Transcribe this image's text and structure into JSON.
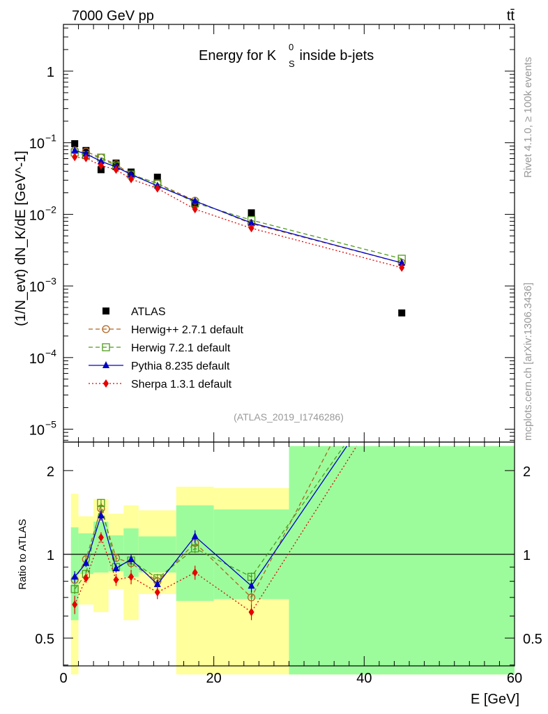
{
  "header": {
    "energy_label": "7000 GeV pp",
    "process_label": "tt̄"
  },
  "side_labels": {
    "rivet": "Rivet 4.1.0, ≥ 100k events",
    "mcplots": "mcplots.cern.ch [arXiv:1306.3436]"
  },
  "chart_data": [
    {
      "type": "scatter",
      "panel": "main",
      "title": "Energy for K",
      "title_super": "0",
      "title_sub": "S",
      "title_tail": " inside b-jets",
      "analysis_id": "(ATLAS_2019_I1746286)",
      "ylabel": "(1/N_evt) dN_K/dE [GeV^-1]",
      "yscale": "log",
      "ylim": [
        6e-06,
        4
      ],
      "xlim": [
        0,
        60
      ],
      "ytick_labels": [
        {
          "base": "1",
          "exp": ""
        },
        {
          "base": "10",
          "exp": "−1"
        },
        {
          "base": "10",
          "exp": "−2"
        },
        {
          "base": "10",
          "exp": "−3"
        },
        {
          "base": "10",
          "exp": "−4"
        },
        {
          "base": "10",
          "exp": "−5"
        }
      ],
      "ytick_values": [
        1,
        0.1,
        0.01,
        0.001,
        0.0001,
        1e-05
      ],
      "legend_position": "lower-left",
      "series": [
        {
          "name": "ATLAS",
          "color": "#000000",
          "marker": "square-filled",
          "x": [
            1.5,
            3,
            5,
            7,
            9,
            12.5,
            17.5,
            25,
            45
          ],
          "y": [
            0.097,
            0.078,
            0.042,
            0.052,
            0.039,
            0.033,
            0.014,
            0.0105,
            0.00042
          ]
        },
        {
          "name": "Herwig++ 2.7.1 default",
          "color": "#b0641e",
          "marker": "circle-open",
          "dash": "6,4",
          "x": [
            1.5,
            3,
            5,
            7,
            9,
            12.5,
            17.5,
            25,
            45
          ],
          "y": [
            0.078,
            0.075,
            0.062,
            0.05,
            0.036,
            0.027,
            0.0155,
            0.0074,
            0.0021
          ]
        },
        {
          "name": "Herwig 7.2.1 default",
          "color": "#4e9a1c",
          "marker": "square-open",
          "dash": "6,4",
          "x": [
            1.5,
            3,
            5,
            7,
            9,
            12.5,
            17.5,
            25,
            45
          ],
          "y": [
            0.073,
            0.067,
            0.062,
            0.047,
            0.036,
            0.027,
            0.0145,
            0.0083,
            0.0024
          ]
        },
        {
          "name": "Pythia 8.235 default",
          "color": "#0000c8",
          "marker": "triangle-filled",
          "x": [
            1.5,
            3,
            5,
            7,
            9,
            12.5,
            17.5,
            25,
            45
          ],
          "y": [
            0.078,
            0.07,
            0.055,
            0.046,
            0.036,
            0.025,
            0.0153,
            0.0076,
            0.0021
          ]
        },
        {
          "name": "Sherpa 1.3.1 default",
          "color": "#e60000",
          "marker": "diamond-filled",
          "dash": "2,3",
          "x": [
            1.5,
            3,
            5,
            7,
            9,
            12.5,
            17.5,
            25,
            45
          ],
          "y": [
            0.063,
            0.061,
            0.048,
            0.042,
            0.031,
            0.023,
            0.0118,
            0.0064,
            0.0018
          ]
        }
      ]
    },
    {
      "type": "line",
      "panel": "ratio",
      "ylabel": "Ratio to ATLAS",
      "xlabel": "E [GeV]",
      "ylim": [
        0.37,
        2.45
      ],
      "xlim": [
        0,
        60
      ],
      "xtick_labels": [
        "0",
        "20",
        "40",
        "60"
      ],
      "xtick_values": [
        0,
        20,
        40,
        60
      ],
      "ytick_labels": [
        "0.5",
        "1",
        "2"
      ],
      "ytick_values": [
        0.5,
        1,
        2
      ],
      "reference_line": 1,
      "uncertainty_bands": [
        {
          "x_range": [
            1,
            2
          ],
          "inner": [
            0.58,
            1.25
          ],
          "outer": [
            0.37,
            1.65
          ]
        },
        {
          "x_range": [
            2,
            4
          ],
          "inner": [
            0.85,
            1.19
          ],
          "outer": [
            0.66,
            1.37
          ]
        },
        {
          "x_range": [
            4,
            6
          ],
          "inner": [
            0.86,
            1.31
          ],
          "outer": [
            0.62,
            1.58
          ]
        },
        {
          "x_range": [
            6,
            8
          ],
          "inner": [
            0.87,
            1.17
          ],
          "outer": [
            0.75,
            1.4
          ]
        },
        {
          "x_range": [
            8,
            10
          ],
          "inner": [
            0.83,
            1.24
          ],
          "outer": [
            0.58,
            1.5
          ]
        },
        {
          "x_range": [
            10,
            15
          ],
          "inner": [
            0.86,
            1.16
          ],
          "outer": [
            0.72,
            1.44
          ]
        },
        {
          "x_range": [
            15,
            20
          ],
          "inner": [
            0.68,
            1.5
          ],
          "outer": [
            0.37,
            1.75
          ]
        },
        {
          "x_range": [
            20,
            30
          ],
          "inner": [
            0.69,
            1.45
          ],
          "outer": [
            0.37,
            1.73
          ]
        },
        {
          "x_range": [
            30,
            60
          ],
          "inner": [
            0.37,
            2.45
          ],
          "outer": [
            0.37,
            2.45
          ]
        }
      ],
      "series": [
        {
          "name": "Herwig++ 2.7.1 default",
          "x": [
            1.5,
            3,
            5,
            7,
            9,
            12.5,
            17.5,
            25,
            35.5
          ],
          "y": [
            0.81,
            0.96,
            1.46,
            0.97,
            0.93,
            0.8,
            1.1,
            0.7,
            2.45
          ],
          "err": [
            0.04,
            0.03,
            0.05,
            0.03,
            0.04,
            0.03,
            0.05,
            0.04,
            0
          ]
        },
        {
          "name": "Herwig 7.2.1 default",
          "x": [
            1.5,
            3,
            5,
            7,
            9,
            12.5,
            17.5,
            25,
            37.3
          ],
          "y": [
            0.75,
            0.85,
            1.53,
            0.9,
            0.95,
            0.82,
            1.05,
            0.83,
            2.45
          ],
          "err": [
            0.03,
            0.03,
            0.05,
            0.03,
            0.04,
            0.03,
            0.04,
            0.03,
            0
          ]
        },
        {
          "name": "Pythia 8.235 default",
          "x": [
            1.5,
            3,
            5,
            7,
            9,
            12.5,
            17.5,
            25,
            37.7
          ],
          "y": [
            0.83,
            0.93,
            1.38,
            0.89,
            0.96,
            0.78,
            1.16,
            0.77,
            2.45
          ],
          "err": [
            0.04,
            0.03,
            0.06,
            0.03,
            0.04,
            0.03,
            0.06,
            0.04,
            0
          ]
        },
        {
          "name": "Sherpa 1.3.1 default",
          "x": [
            1.5,
            3,
            5,
            7,
            9,
            12.5,
            17.5,
            25,
            39
          ],
          "y": [
            0.66,
            0.82,
            1.15,
            0.81,
            0.83,
            0.73,
            0.86,
            0.62,
            2.45
          ],
          "err": [
            0.05,
            0.03,
            0.05,
            0.04,
            0.05,
            0.04,
            0.05,
            0.04,
            0
          ]
        }
      ]
    }
  ]
}
